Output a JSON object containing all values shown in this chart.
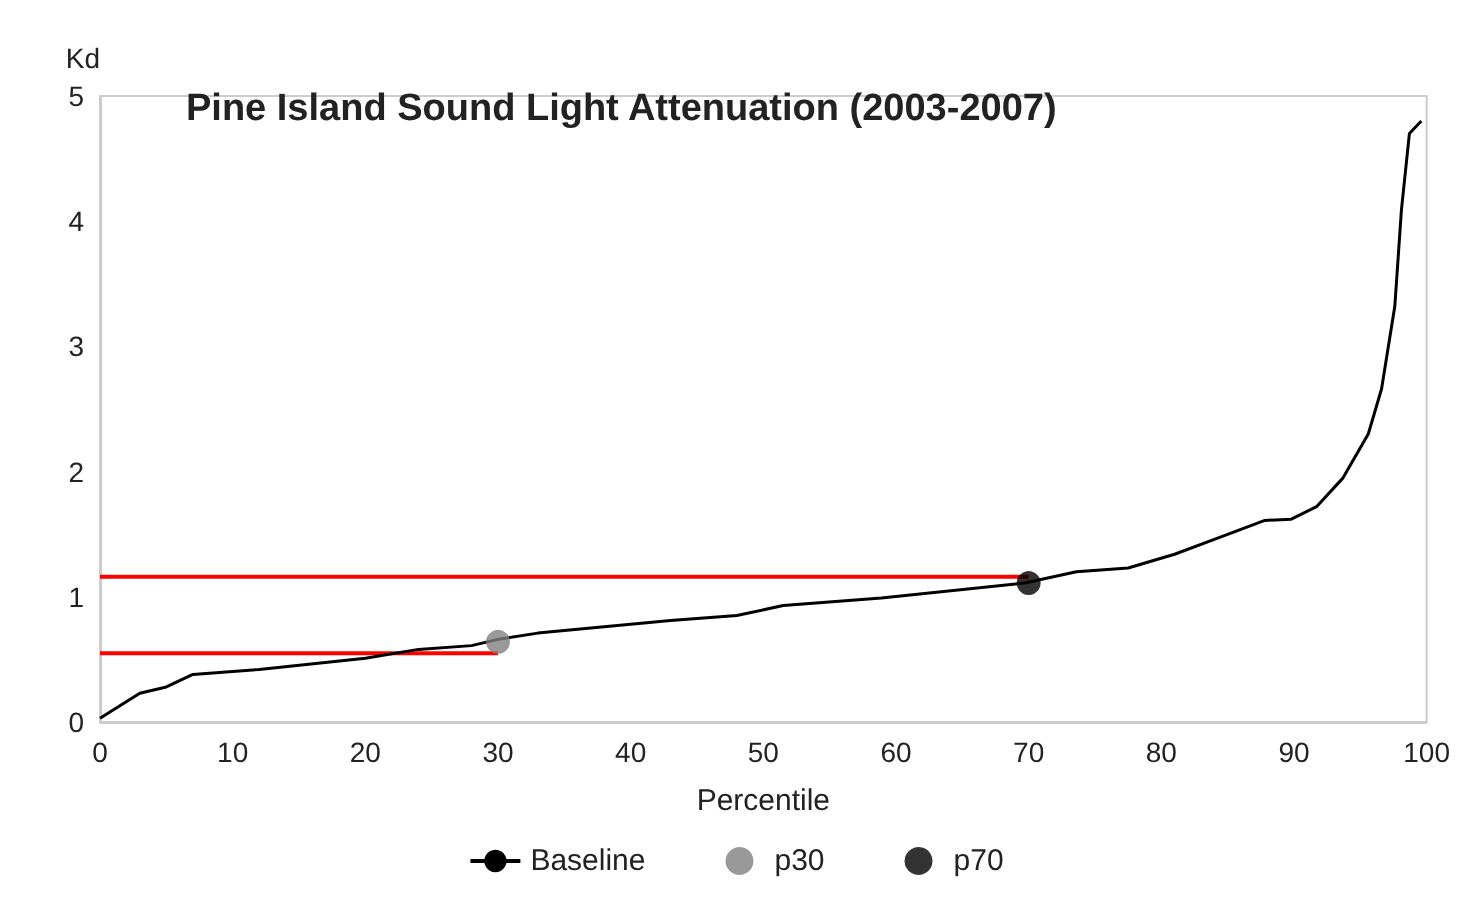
{
  "chart_data": {
    "type": "line",
    "title": "Pine Island Sound Light Attenuation (2003-2007)",
    "xlabel": "Percentile",
    "ylabel": "Kd",
    "xlim": [
      0,
      100
    ],
    "ylim": [
      0,
      5
    ],
    "xticks": [
      0,
      10,
      20,
      30,
      40,
      50,
      60,
      70,
      80,
      90,
      100
    ],
    "yticks": [
      0,
      1,
      2,
      3,
      4,
      5
    ],
    "grid": false,
    "legend": "bottom",
    "series": [
      {
        "name": "Baseline",
        "color": "#000000",
        "marker": "none",
        "x": [
          0,
          3,
          5,
          7,
          12,
          20,
          24,
          28,
          30,
          33,
          38,
          43,
          48,
          51.5,
          58.9,
          69.7,
          73.6,
          77.5,
          81,
          84.8,
          87.8,
          89.8,
          91.7,
          93.7,
          95.6,
          96.6,
          97.6,
          98.1,
          98.7,
          99.6
        ],
        "values": [
          0.03,
          0.23,
          0.28,
          0.38,
          0.42,
          0.51,
          0.58,
          0.61,
          0.66,
          0.71,
          0.76,
          0.81,
          0.85,
          0.93,
          0.99,
          1.11,
          1.2,
          1.23,
          1.34,
          1.49,
          1.61,
          1.62,
          1.72,
          1.95,
          2.3,
          2.66,
          3.32,
          4.09,
          4.7,
          4.8
        ]
      },
      {
        "name": "p30",
        "type": "scatter",
        "color": "#808080",
        "marker": "circle",
        "x": [
          30
        ],
        "values": [
          0.64
        ]
      },
      {
        "name": "p70",
        "type": "scatter",
        "color": "#000000",
        "marker": "circle",
        "x": [
          70
        ],
        "values": [
          1.11
        ]
      },
      {
        "color": "#ff0000",
        "marker": "none",
        "x": [
          0,
          30
        ],
        "values": [
          0.55,
          0.55
        ]
      },
      {
        "color": "#ff0000",
        "marker": "none",
        "x": [
          0,
          70
        ],
        "values": [
          1.16,
          1.16
        ]
      }
    ]
  }
}
